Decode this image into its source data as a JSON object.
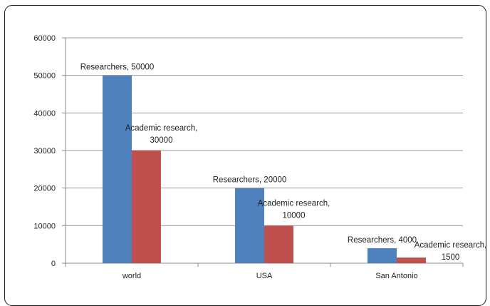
{
  "chart_data": {
    "type": "bar",
    "categories": [
      "world",
      "USA",
      "San Antonio"
    ],
    "series": [
      {
        "name": "Researchers",
        "values": [
          50000,
          20000,
          4000
        ],
        "color": "#4f81bd",
        "labels": [
          "Researchers, 50000",
          "Researchers, 20000",
          "Researchers, 4000"
        ]
      },
      {
        "name": "Academic research",
        "values": [
          30000,
          10000,
          1500
        ],
        "color": "#c0504d",
        "labels": [
          [
            "Academic research,",
            "30000"
          ],
          [
            "Academic research,",
            "10000"
          ],
          [
            "Academic research,",
            "1500"
          ]
        ]
      }
    ],
    "ylim": [
      0,
      60000
    ],
    "yticks": [
      0,
      10000,
      20000,
      30000,
      40000,
      50000,
      60000
    ],
    "grid": true,
    "title": "",
    "xlabel": "",
    "ylabel": ""
  }
}
